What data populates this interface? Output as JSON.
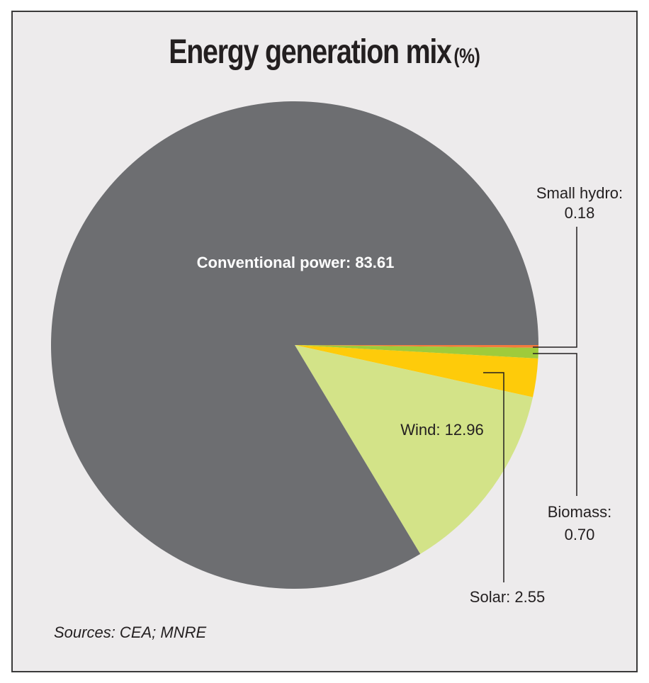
{
  "chart_data": {
    "type": "pie",
    "title": "Energy generation mix",
    "title_unit": "(%)",
    "start": "3 o'clock, clockwise",
    "slices": [
      {
        "key": "small_hydro",
        "label": "Small hydro:",
        "value_text": "0.18",
        "value": 0.18,
        "color": "#f47b3d"
      },
      {
        "key": "biomass",
        "label": "Biomass:",
        "value_text": "0.70",
        "value": 0.7,
        "color": "#9fcb3b"
      },
      {
        "key": "solar",
        "label": "Solar:",
        "value_text": "2.55",
        "value": 2.55,
        "color": "#fecb0a"
      },
      {
        "key": "wind",
        "label": "Wind:",
        "value_text": "12.96",
        "value": 12.96,
        "color": "#d3e388"
      },
      {
        "key": "conventional",
        "label": "Conventional power:",
        "value_text": "83.61",
        "value": 83.61,
        "color": "#6d6e71"
      }
    ],
    "source": "Sources: CEA; MNRE"
  }
}
